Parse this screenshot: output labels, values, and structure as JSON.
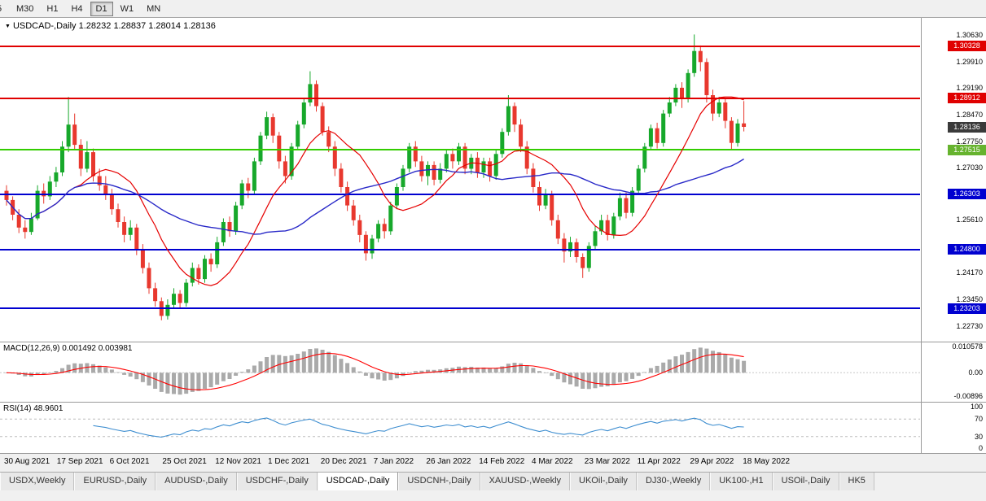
{
  "toolbar": {
    "timeframes": [
      {
        "label": "5",
        "active": false
      },
      {
        "label": "M30",
        "active": false
      },
      {
        "label": "H1",
        "active": false
      },
      {
        "label": "H4",
        "active": false
      },
      {
        "label": "D1",
        "active": true
      },
      {
        "label": "W1",
        "active": false
      },
      {
        "label": "MN",
        "active": false
      }
    ]
  },
  "chart_header": {
    "dropdown_icon": "▼",
    "symbol_period": "USDCAD-,Daily",
    "quote": "1.28232 1.28837 1.28014 1.28136"
  },
  "indicators": {
    "macd": {
      "label": "MACD(12,26,9) 0.001492 0.003981",
      "fast": 12,
      "slow": 26,
      "signal": 9,
      "value_main": "0.001492",
      "value_signal": "0.003981",
      "axis_labels": [
        "0.010578",
        "0.00",
        "-0.00896"
      ],
      "hist_color": "#aaaaaa",
      "signal_color": "#ff0000",
      "zero_color": "#c8c8c8"
    },
    "rsi": {
      "label": "RSI(14) 48.9601",
      "period": 14,
      "value": "48.9601",
      "axis_labels": [
        "100",
        "70",
        "30",
        "0"
      ],
      "levels": [
        70,
        30
      ],
      "line_color": "#3e8ed0",
      "level_color": "#bbbbbb"
    }
  },
  "price_axis": {
    "max": 1.311,
    "min": 1.223,
    "plain_ticks": [
      "1.30630",
      "1.29910",
      "1.29190",
      "1.28470",
      "1.27750",
      "1.27030",
      "1.25610",
      "1.24170",
      "1.23450",
      "1.22730"
    ],
    "tags": [
      {
        "value": "1.30328",
        "color": "#e00000"
      },
      {
        "value": "1.28912",
        "color": "#e00000"
      },
      {
        "value": "1.28136",
        "color": "#3a3a3a"
      },
      {
        "value": "1.27515",
        "color": "#66b32e"
      },
      {
        "value": "1.26303",
        "color": "#0000d0"
      },
      {
        "value": "1.24800",
        "color": "#0000d0"
      },
      {
        "value": "1.23203",
        "color": "#0000d0"
      }
    ]
  },
  "hlines": [
    {
      "value": 1.30328,
      "color": "#e00000",
      "width": 2
    },
    {
      "value": 1.28912,
      "color": "#e00000",
      "width": 2
    },
    {
      "value": 1.27515,
      "color": "#33cc00",
      "width": 2
    },
    {
      "value": 1.26303,
      "color": "#0000d0",
      "width": 2
    },
    {
      "value": 1.248,
      "color": "#0000d0",
      "width": 2
    },
    {
      "value": 1.23203,
      "color": "#0000d0",
      "width": 2
    }
  ],
  "chart_data": {
    "type": "candlestick",
    "symbol": "USDCAD-",
    "timeframe": "Daily",
    "title": "USDCAD-,Daily",
    "ylim": [
      1.223,
      1.311
    ],
    "x_labels": [
      "30 Aug 2021",
      "17 Sep 2021",
      "6 Oct 2021",
      "25 Oct 2021",
      "12 Nov 2021",
      "1 Dec 2021",
      "20 Dec 2021",
      "7 Jan 2022",
      "26 Jan 2022",
      "14 Feb 2022",
      "4 Mar 2022",
      "23 Mar 2022",
      "11 Apr 2022",
      "29 Apr 2022",
      "18 May 2022"
    ],
    "up_color": "#17a82b",
    "down_color": "#e8382e",
    "ma_fast_color": "#e60000",
    "ma_slow_color": "#2929c8",
    "ma_fast_period": 12,
    "ma_slow_period": 30,
    "candles": [
      [
        1.264,
        1.2655,
        1.26,
        1.2615
      ],
      [
        1.2615,
        1.2625,
        1.256,
        1.2575
      ],
      [
        1.2575,
        1.259,
        1.2525,
        1.254
      ],
      [
        1.254,
        1.256,
        1.251,
        1.2528
      ],
      [
        1.2528,
        1.258,
        1.252,
        1.2565
      ],
      [
        1.2565,
        1.2655,
        1.256,
        1.264
      ],
      [
        1.264,
        1.266,
        1.2605,
        1.2625
      ],
      [
        1.2625,
        1.268,
        1.2615,
        1.2665
      ],
      [
        1.2665,
        1.2705,
        1.265,
        1.269
      ],
      [
        1.269,
        1.2775,
        1.268,
        1.276
      ],
      [
        1.276,
        1.2895,
        1.2745,
        1.282
      ],
      [
        1.282,
        1.285,
        1.275,
        1.2765
      ],
      [
        1.2765,
        1.278,
        1.268,
        1.27
      ],
      [
        1.27,
        1.2775,
        1.269,
        1.2745
      ],
      [
        1.2745,
        1.2755,
        1.2665,
        1.268
      ],
      [
        1.268,
        1.27,
        1.264,
        1.2655
      ],
      [
        1.2655,
        1.268,
        1.2615,
        1.263
      ],
      [
        1.263,
        1.2645,
        1.2575,
        1.259
      ],
      [
        1.259,
        1.2605,
        1.254,
        1.2555
      ],
      [
        1.2555,
        1.257,
        1.25,
        1.252
      ],
      [
        1.252,
        1.256,
        1.2505,
        1.254
      ],
      [
        1.254,
        1.255,
        1.2465,
        1.248
      ],
      [
        1.248,
        1.2495,
        1.2415,
        1.243
      ],
      [
        1.243,
        1.2445,
        1.236,
        1.2375
      ],
      [
        1.2375,
        1.239,
        1.2325,
        1.234
      ],
      [
        1.234,
        1.235,
        1.2288,
        1.23
      ],
      [
        1.23,
        1.2345,
        1.229,
        1.233
      ],
      [
        1.233,
        1.2375,
        1.232,
        1.236
      ],
      [
        1.236,
        1.237,
        1.232,
        1.2335
      ],
      [
        1.2335,
        1.24,
        1.2325,
        1.239
      ],
      [
        1.239,
        1.2445,
        1.238,
        1.243
      ],
      [
        1.243,
        1.244,
        1.2385,
        1.24
      ],
      [
        1.24,
        1.2465,
        1.239,
        1.2455
      ],
      [
        1.2455,
        1.247,
        1.242,
        1.244
      ],
      [
        1.244,
        1.2515,
        1.243,
        1.25
      ],
      [
        1.25,
        1.2565,
        1.249,
        1.2555
      ],
      [
        1.2555,
        1.257,
        1.2515,
        1.253
      ],
      [
        1.253,
        1.261,
        1.252,
        1.26
      ],
      [
        1.26,
        1.267,
        1.259,
        1.266
      ],
      [
        1.266,
        1.2675,
        1.262,
        1.264
      ],
      [
        1.264,
        1.273,
        1.263,
        1.272
      ],
      [
        1.272,
        1.28,
        1.271,
        1.279
      ],
      [
        1.279,
        1.2855,
        1.278,
        1.284
      ],
      [
        1.284,
        1.285,
        1.277,
        1.279
      ],
      [
        1.279,
        1.28,
        1.27,
        1.272
      ],
      [
        1.272,
        1.2735,
        1.266,
        1.268
      ],
      [
        1.268,
        1.277,
        1.267,
        1.276
      ],
      [
        1.276,
        1.283,
        1.275,
        1.282
      ],
      [
        1.282,
        1.289,
        1.281,
        1.288
      ],
      [
        1.288,
        1.2965,
        1.287,
        1.293
      ],
      [
        1.293,
        1.294,
        1.2855,
        1.287
      ],
      [
        1.287,
        1.288,
        1.279,
        1.28
      ],
      [
        1.28,
        1.2815,
        1.2745,
        1.276
      ],
      [
        1.276,
        1.2775,
        1.268,
        1.27
      ],
      [
        1.27,
        1.2715,
        1.2635,
        1.265
      ],
      [
        1.265,
        1.2665,
        1.2585,
        1.26
      ],
      [
        1.26,
        1.2615,
        1.2545,
        1.256
      ],
      [
        1.256,
        1.2575,
        1.25,
        1.252
      ],
      [
        1.252,
        1.253,
        1.245,
        1.247
      ],
      [
        1.247,
        1.252,
        1.2455,
        1.251
      ],
      [
        1.251,
        1.256,
        1.25,
        1.255
      ],
      [
        1.255,
        1.2565,
        1.251,
        1.253
      ],
      [
        1.253,
        1.261,
        1.252,
        1.26
      ],
      [
        1.26,
        1.266,
        1.259,
        1.265
      ],
      [
        1.265,
        1.271,
        1.264,
        1.27
      ],
      [
        1.27,
        1.277,
        1.269,
        1.276
      ],
      [
        1.276,
        1.2775,
        1.2705,
        1.272
      ],
      [
        1.272,
        1.2735,
        1.2665,
        1.268
      ],
      [
        1.268,
        1.272,
        1.2655,
        1.271
      ],
      [
        1.271,
        1.272,
        1.2655,
        1.267
      ],
      [
        1.267,
        1.2715,
        1.266,
        1.27
      ],
      [
        1.27,
        1.275,
        1.269,
        1.274
      ],
      [
        1.274,
        1.2755,
        1.27,
        1.272
      ],
      [
        1.272,
        1.277,
        1.271,
        1.276
      ],
      [
        1.276,
        1.277,
        1.2685,
        1.27
      ],
      [
        1.27,
        1.274,
        1.2685,
        1.273
      ],
      [
        1.273,
        1.2745,
        1.2675,
        1.269
      ],
      [
        1.269,
        1.273,
        1.2675,
        1.272
      ],
      [
        1.272,
        1.273,
        1.2665,
        1.268
      ],
      [
        1.268,
        1.275,
        1.267,
        1.274
      ],
      [
        1.274,
        1.281,
        1.273,
        1.28
      ],
      [
        1.28,
        1.29,
        1.279,
        1.287
      ],
      [
        1.287,
        1.288,
        1.28,
        1.282
      ],
      [
        1.282,
        1.2835,
        1.2745,
        1.276
      ],
      [
        1.276,
        1.2775,
        1.2685,
        1.27
      ],
      [
        1.27,
        1.2715,
        1.2635,
        1.265
      ],
      [
        1.265,
        1.2665,
        1.2585,
        1.26
      ],
      [
        1.26,
        1.2645,
        1.259,
        1.263
      ],
      [
        1.263,
        1.264,
        1.2545,
        1.256
      ],
      [
        1.256,
        1.2575,
        1.2495,
        1.251
      ],
      [
        1.251,
        1.2525,
        1.2445,
        1.2475
      ],
      [
        1.2475,
        1.2515,
        1.246,
        1.25
      ],
      [
        1.25,
        1.251,
        1.2445,
        1.246
      ],
      [
        1.246,
        1.247,
        1.2403,
        1.243
      ],
      [
        1.243,
        1.25,
        1.242,
        1.249
      ],
      [
        1.249,
        1.2545,
        1.248,
        1.253
      ],
      [
        1.253,
        1.2575,
        1.252,
        1.256
      ],
      [
        1.256,
        1.2575,
        1.2505,
        1.252
      ],
      [
        1.252,
        1.258,
        1.251,
        1.257
      ],
      [
        1.257,
        1.2635,
        1.256,
        1.262
      ],
      [
        1.262,
        1.2635,
        1.2565,
        1.258
      ],
      [
        1.258,
        1.265,
        1.257,
        1.264
      ],
      [
        1.264,
        1.271,
        1.263,
        1.27
      ],
      [
        1.27,
        1.277,
        1.269,
        1.276
      ],
      [
        1.276,
        1.282,
        1.275,
        1.281
      ],
      [
        1.281,
        1.2825,
        1.2755,
        1.277
      ],
      [
        1.277,
        1.286,
        1.276,
        1.285
      ],
      [
        1.285,
        1.2895,
        1.284,
        1.288
      ],
      [
        1.288,
        1.293,
        1.287,
        1.292
      ],
      [
        1.292,
        1.2935,
        1.2865,
        1.289
      ],
      [
        1.289,
        1.297,
        1.288,
        1.296
      ],
      [
        1.296,
        1.3065,
        1.295,
        1.302
      ],
      [
        1.302,
        1.3035,
        1.2965,
        1.299
      ],
      [
        1.299,
        1.3,
        1.288,
        1.29
      ],
      [
        1.29,
        1.2915,
        1.283,
        1.285
      ],
      [
        1.285,
        1.2895,
        1.284,
        1.288
      ],
      [
        1.288,
        1.289,
        1.281,
        1.283
      ],
      [
        1.283,
        1.284,
        1.275,
        1.277
      ],
      [
        1.277,
        1.2835,
        1.276,
        1.2823
      ],
      [
        1.28232,
        1.28837,
        1.28014,
        1.28136
      ]
    ]
  },
  "tabbar": {
    "tabs": [
      {
        "label": "USDX,Weekly",
        "active": false
      },
      {
        "label": "EURUSD-,Daily",
        "active": false
      },
      {
        "label": "AUDUSD-,Daily",
        "active": false
      },
      {
        "label": "USDCHF-,Daily",
        "active": false
      },
      {
        "label": "USDCAD-,Daily",
        "active": true
      },
      {
        "label": "USDCNH-,Daily",
        "active": false
      },
      {
        "label": "XAUUSD-,Weekly",
        "active": false
      },
      {
        "label": "UKOil-,Daily",
        "active": false
      },
      {
        "label": "DJ30-,Weekly",
        "active": false
      },
      {
        "label": "UK100-,H1",
        "active": false
      },
      {
        "label": "USOil-,Daily",
        "active": false
      },
      {
        "label": "HK5",
        "active": false
      }
    ]
  }
}
